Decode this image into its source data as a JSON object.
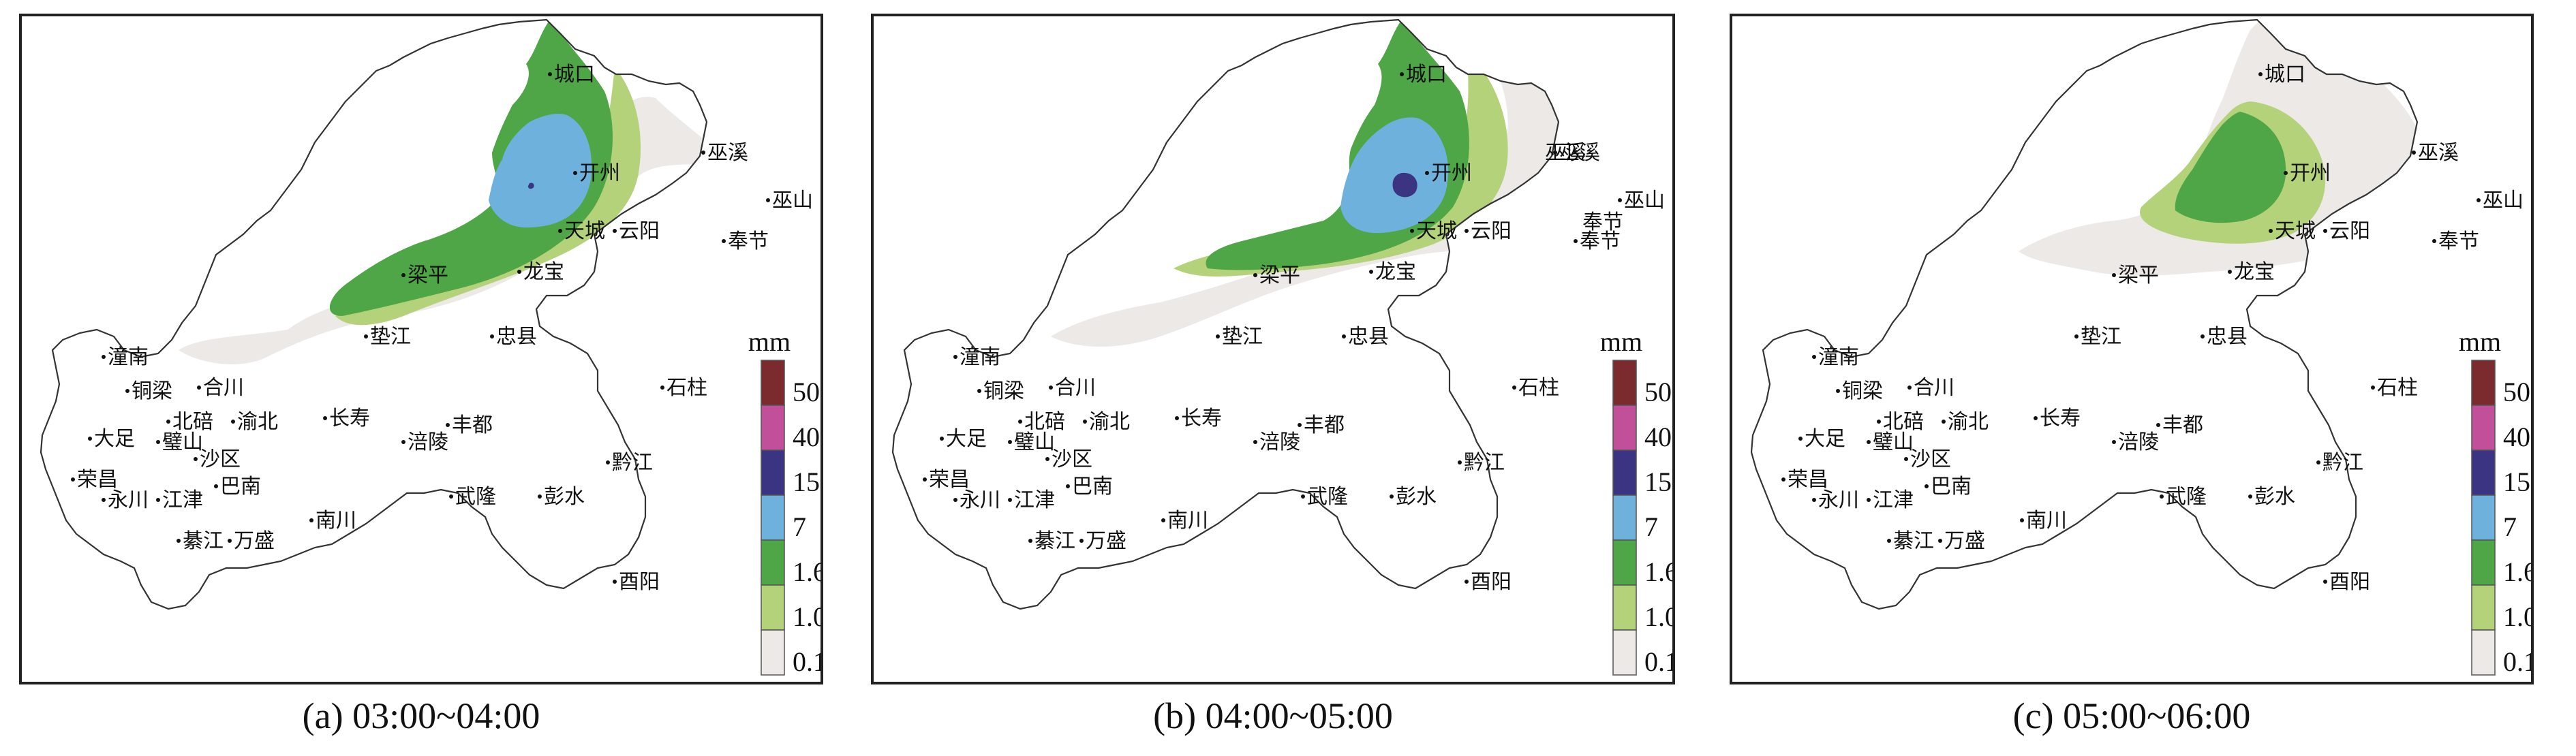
{
  "figure": {
    "panels": [
      {
        "caption": "(a) 03:00~04:00"
      },
      {
        "caption": "(b) 04:00~05:00"
      },
      {
        "caption": "(c) 05:00~06:00"
      }
    ],
    "legend": {
      "unit": "mm",
      "levels": [
        {
          "label": "50",
          "color": "#7b2a2e"
        },
        {
          "label": "40",
          "color": "#c14f9a"
        },
        {
          "label": "15",
          "color": "#3b3483"
        },
        {
          "label": "7",
          "color": "#6db1dc"
        },
        {
          "label": "1.6",
          "color": "#4fa646"
        },
        {
          "label": "1.0",
          "color": "#b3d27a"
        },
        {
          "label": "0.1",
          "color": "#ece9e6"
        }
      ]
    },
    "cities": [
      {
        "name": "城口"
      },
      {
        "name": "巫溪"
      },
      {
        "name": "开州"
      },
      {
        "name": "巫山"
      },
      {
        "name": "天城"
      },
      {
        "name": "云阳"
      },
      {
        "name": "奉节"
      },
      {
        "name": "梁平"
      },
      {
        "name": "龙宝"
      },
      {
        "name": "垫江"
      },
      {
        "name": "忠县"
      },
      {
        "name": "潼南"
      },
      {
        "name": "铜梁"
      },
      {
        "name": "合川"
      },
      {
        "name": "石柱"
      },
      {
        "name": "北碚"
      },
      {
        "name": "渝北"
      },
      {
        "name": "长寿"
      },
      {
        "name": "丰都"
      },
      {
        "name": "大足"
      },
      {
        "name": "璧山"
      },
      {
        "name": "沙区"
      },
      {
        "name": "涪陵"
      },
      {
        "name": "黔江"
      },
      {
        "name": "荣昌"
      },
      {
        "name": "永川"
      },
      {
        "name": "江津"
      },
      {
        "name": "巴南"
      },
      {
        "name": "武隆"
      },
      {
        "name": "彭水"
      },
      {
        "name": "綦江"
      },
      {
        "name": "万盛"
      },
      {
        "name": "南川"
      },
      {
        "name": "酉阳"
      }
    ],
    "extra_labels": {
      "panel_b_extra_1": "巫溪",
      "panel_b_extra_2": "奉节"
    }
  }
}
